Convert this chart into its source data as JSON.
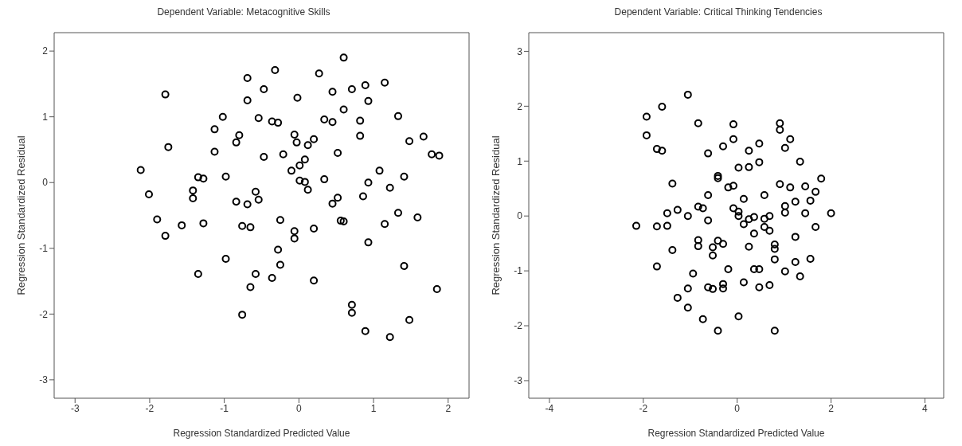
{
  "chart_data": [
    {
      "type": "scatter",
      "title": "Dependent Variable: Metacognitive Skills",
      "xlabel": "Regression Standardized Predicted Value",
      "ylabel": "Regression Standardized Residual",
      "color": "#000000",
      "marker": "circle",
      "xlim": [
        -3.28,
        2.28
      ],
      "ylim": [
        -3.28,
        2.28
      ],
      "xticks": [
        -3,
        -2,
        -1,
        0,
        1,
        2
      ],
      "yticks": [
        -3,
        -2,
        -1,
        0,
        1,
        2
      ],
      "x": [
        -1.79,
        -1.75,
        -2.12,
        -2.01,
        -1.9,
        -1.79,
        -1.57,
        -1.35,
        -1.28,
        -1.42,
        -1.42,
        -1.28,
        -1.35,
        -1.13,
        -1.02,
        -1.13,
        -0.98,
        -0.98,
        -0.84,
        -0.8,
        -0.84,
        -0.76,
        -0.76,
        -0.69,
        -0.69,
        -0.47,
        -0.54,
        -0.47,
        -0.58,
        -0.54,
        -0.69,
        -0.65,
        -0.58,
        -0.65,
        -0.32,
        -0.36,
        -0.28,
        -0.21,
        -0.25,
        -0.28,
        -0.25,
        -0.36,
        -0.02,
        -0.06,
        -0.03,
        -0.1,
        0.01,
        0.08,
        0.12,
        0.2,
        0.01,
        0.08,
        0.12,
        -0.06,
        -0.06,
        0.2,
        0.2,
        0.27,
        0.34,
        0.45,
        0.45,
        0.6,
        0.6,
        0.71,
        0.52,
        0.34,
        0.52,
        0.45,
        0.56,
        0.6,
        0.71,
        0.71,
        0.82,
        0.82,
        0.89,
        0.93,
        0.86,
        0.93,
        0.93,
        0.89,
        1.08,
        1.15,
        1.22,
        1.15,
        1.22,
        1.33,
        1.33,
        1.41,
        1.41,
        1.48,
        1.48,
        1.59,
        1.67,
        1.78,
        1.88,
        1.85
      ],
      "values": [
        1.34,
        0.54,
        0.19,
        -0.18,
        -0.56,
        -0.81,
        -0.65,
        0.08,
        0.06,
        -0.12,
        -0.24,
        -0.62,
        -1.39,
        0.81,
        1.0,
        0.47,
        0.09,
        -1.16,
        0.61,
        0.72,
        -0.29,
        -0.66,
        -2.01,
        1.59,
        1.25,
        1.42,
        0.98,
        0.39,
        -0.14,
        -0.26,
        -0.33,
        -0.68,
        -1.39,
        -1.59,
        1.71,
        0.93,
        0.91,
        0.43,
        -0.57,
        -1.02,
        -1.25,
        -1.45,
        1.29,
        0.73,
        0.61,
        0.18,
        0.26,
        0.35,
        0.57,
        0.66,
        0.03,
        0.01,
        -0.11,
        -0.74,
        -0.85,
        -0.7,
        -1.49,
        1.66,
        0.96,
        1.38,
        0.92,
        1.9,
        1.11,
        1.42,
        0.45,
        0.05,
        -0.23,
        -0.32,
        -0.58,
        -0.59,
        -1.86,
        -1.98,
        0.94,
        0.71,
        1.48,
        1.24,
        -0.21,
        0.0,
        -0.91,
        -2.26,
        0.18,
        1.52,
        -0.08,
        -0.63,
        -2.35,
        1.01,
        -0.46,
        0.09,
        -1.27,
        0.63,
        -2.09,
        -0.53,
        0.7,
        0.43,
        0.41,
        -1.62
      ]
    },
    {
      "type": "scatter",
      "title": "Dependent Variable: Critical Thinking Tendencies",
      "xlabel": "Regression Standardized Predicted Value",
      "ylabel": "Regression Standardized Residual",
      "color": "#000000",
      "marker": "circle",
      "xlim": [
        -4.44,
        4.4
      ],
      "ylim": [
        -3.32,
        3.34
      ],
      "xticks": [
        -4,
        -2,
        0,
        2,
        4
      ],
      "yticks": [
        -3,
        -2,
        -1,
        0,
        1,
        2,
        3
      ],
      "x": [
        -1.05,
        -1.6,
        -1.93,
        -1.93,
        -1.71,
        -1.6,
        -0.83,
        -1.38,
        -1.49,
        -1.27,
        -1.05,
        -0.83,
        -0.73,
        -2.15,
        -1.71,
        -1.49,
        -1.38,
        -1.71,
        -0.83,
        -0.83,
        -0.94,
        -1.05,
        -1.27,
        -1.05,
        -0.73,
        -0.62,
        -0.3,
        -0.08,
        -0.08,
        -0.41,
        -0.41,
        -0.62,
        -0.62,
        -0.08,
        -0.19,
        -0.41,
        -0.3,
        -0.52,
        -0.52,
        -0.19,
        -0.62,
        -0.52,
        -0.3,
        -0.3,
        -0.41,
        0.03,
        0.25,
        0.25,
        0.47,
        0.47,
        -0.08,
        0.03,
        0.03,
        0.14,
        0.14,
        0.25,
        0.36,
        0.36,
        0.25,
        0.58,
        0.58,
        0.69,
        0.58,
        0.69,
        0.8,
        0.8,
        0.8,
        0.36,
        0.47,
        0.14,
        0.47,
        0.69,
        0.03,
        0.8,
        0.91,
        0.91,
        1.13,
        1.02,
        1.34,
        0.91,
        1.13,
        1.02,
        1.02,
        1.24,
        1.45,
        1.67,
        1.56,
        1.79,
        1.45,
        2.0,
        1.67,
        1.24,
        1.24,
        1.56,
        1.02,
        1.34
      ],
      "values": [
        2.21,
        1.99,
        1.81,
        1.47,
        1.22,
        1.19,
        1.69,
        0.59,
        0.05,
        0.11,
        0.0,
        0.17,
        0.14,
        -0.18,
        -0.19,
        -0.18,
        -0.62,
        -0.92,
        -0.44,
        -0.55,
        -1.05,
        -1.32,
        -1.49,
        -1.67,
        -1.88,
        1.14,
        1.27,
        1.67,
        1.4,
        0.73,
        0.69,
        0.38,
        -0.08,
        0.55,
        0.52,
        -0.45,
        -0.51,
        -0.57,
        -0.72,
        -0.97,
        -1.3,
        -1.33,
        -1.24,
        -1.32,
        -2.09,
        0.88,
        0.89,
        1.19,
        1.32,
        0.98,
        0.14,
        0.08,
        0.0,
        0.31,
        -0.15,
        -0.06,
        -0.02,
        -0.32,
        -0.56,
        0.38,
        -0.05,
        0.0,
        -0.2,
        -0.27,
        -0.52,
        -0.6,
        -0.79,
        -0.97,
        -0.97,
        -1.21,
        -1.3,
        -1.26,
        -1.83,
        -2.09,
        1.69,
        1.57,
        1.4,
        1.24,
        0.99,
        0.58,
        0.52,
        0.18,
        0.06,
        0.26,
        0.54,
        0.44,
        0.28,
        0.68,
        0.05,
        0.05,
        -0.2,
        -0.38,
        -0.84,
        -0.78,
        -1.01,
        -1.1
      ]
    }
  ]
}
